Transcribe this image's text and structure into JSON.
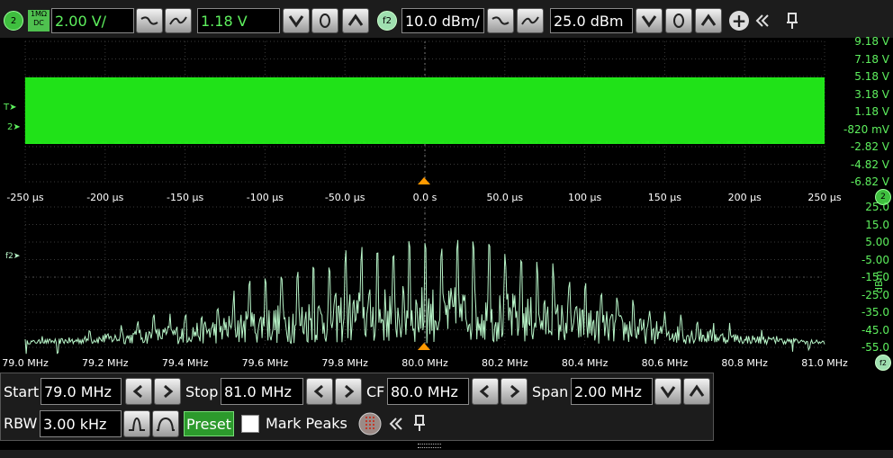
{
  "top_bar": {
    "channel_label": "2",
    "coupling_impedance": "1MΩ",
    "coupling_mode": "DC",
    "scale_value": "2.00 V/",
    "offset_value": "1.18 V",
    "fft_label": "f2",
    "fft_scale_value": "10.0 dBm/",
    "fft_offset_value": "25.0 dBm"
  },
  "time_plot": {
    "y_ticks": [
      "9.18 V",
      "7.18 V",
      "5.18 V",
      "3.18 V",
      "1.18 V",
      "-820 mV",
      "-2.82 V",
      "-4.82 V",
      "-6.82 V"
    ],
    "x_ticks": [
      "-250 µs",
      "-200 µs",
      "-150 µs",
      "-100 µs",
      "-50.0 µs",
      "0.0 s",
      "50.0 µs",
      "100 µs",
      "150 µs",
      "200 µs",
      "250 µs"
    ],
    "trigger_marker": "T",
    "channel_marker": "2",
    "channel_badge": "2",
    "trace_color": "#22e81a"
  },
  "chart_data": {
    "type": "line",
    "title": "",
    "xlabel": "",
    "ylabel": "dBm",
    "x_ticks": [
      "79.0 MHz",
      "79.2 MHz",
      "79.4 MHz",
      "79.6 MHz",
      "79.8 MHz",
      "80.0 MHz",
      "80.2 MHz",
      "80.4 MHz",
      "80.6 MHz",
      "80.8 MHz",
      "81.0 MHz"
    ],
    "y_ticks": [
      "25.0",
      "15.0",
      "5.00",
      "-5.00",
      "-15.0",
      "-25.0",
      "-35.0",
      "-45.0",
      "-55.0"
    ],
    "xlim": [
      79.0,
      81.0
    ],
    "ylim": [
      -57,
      28
    ],
    "series": [
      {
        "name": "f2",
        "x_step_mhz": 0.0025,
        "envelope_center_mhz": 80.0,
        "envelope_peak_dbm": 10,
        "floor_dbm": -55,
        "line_spacing_mhz": 0.04
      }
    ],
    "marker": "f2",
    "badge": "f2",
    "trace_color": "#b8f5c8"
  },
  "controls": {
    "start_label": "Start",
    "start_value": "79.0 MHz",
    "stop_label": "Stop",
    "stop_value": "81.0 MHz",
    "cf_label": "CF",
    "cf_value": "80.0 MHz",
    "span_label": "Span",
    "span_value": "2.00 MHz",
    "rbw_label": "RBW",
    "rbw_value": "3.00 kHz",
    "preset_label": "Preset",
    "mark_peaks_label": "Mark Peaks"
  }
}
